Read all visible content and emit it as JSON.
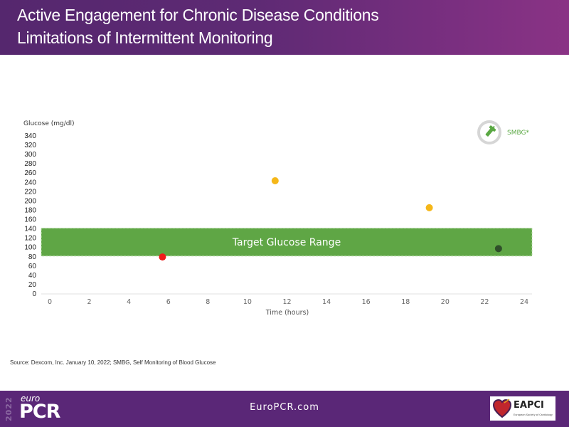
{
  "header": {
    "title_line1": "Active Engagement for Chronic Disease Conditions",
    "title_line2": "Limitations of Intermittent Monitoring"
  },
  "colors": {
    "header_purple": "#5e2a74",
    "footer_purple": "#5a2777",
    "target_band": "#5fa645",
    "point_low": "#ee1c1c",
    "point_high": "#f5b719",
    "point_in_range": "#2f4f2a",
    "legend_ring": "#d6d6d6",
    "legend_green": "#5aa843"
  },
  "chart_data": {
    "type": "scatter",
    "title": "",
    "ylabel": "Glucose (mg/dl)",
    "xlabel": "Time (hours)",
    "xlim": [
      0,
      24
    ],
    "ylim": [
      0,
      340
    ],
    "x_ticks": [
      0,
      2,
      4,
      6,
      8,
      10,
      12,
      14,
      16,
      18,
      20,
      22,
      24
    ],
    "y_ticks": [
      0,
      20,
      40,
      60,
      80,
      100,
      120,
      140,
      160,
      180,
      200,
      220,
      240,
      260,
      280,
      300,
      320,
      340
    ],
    "grid": false,
    "target_range": {
      "label": "Target Glucose Range",
      "low": 80,
      "high": 140
    },
    "legend": {
      "position": "top-right",
      "entries": [
        {
          "label": "SMBG*",
          "icon": "glucose-meter-icon"
        }
      ]
    },
    "series": [
      {
        "name": "SMBG*",
        "points": [
          {
            "x": 5.7,
            "y": 78,
            "status": "low"
          },
          {
            "x": 11.4,
            "y": 242,
            "status": "high"
          },
          {
            "x": 19.2,
            "y": 184,
            "status": "high"
          },
          {
            "x": 22.7,
            "y": 96,
            "status": "in_range"
          }
        ]
      }
    ]
  },
  "source": "Source: Dexcom, Inc. January 10, 2022; SMBG, Self Monitoring of Blood Glucose",
  "footer": {
    "year": "2022",
    "brand_small": "euro",
    "brand_big": "PCR",
    "website": "EuroPCR.com",
    "partner_name": "EAPCI",
    "partner_sub": "European Society of Cardiology"
  }
}
